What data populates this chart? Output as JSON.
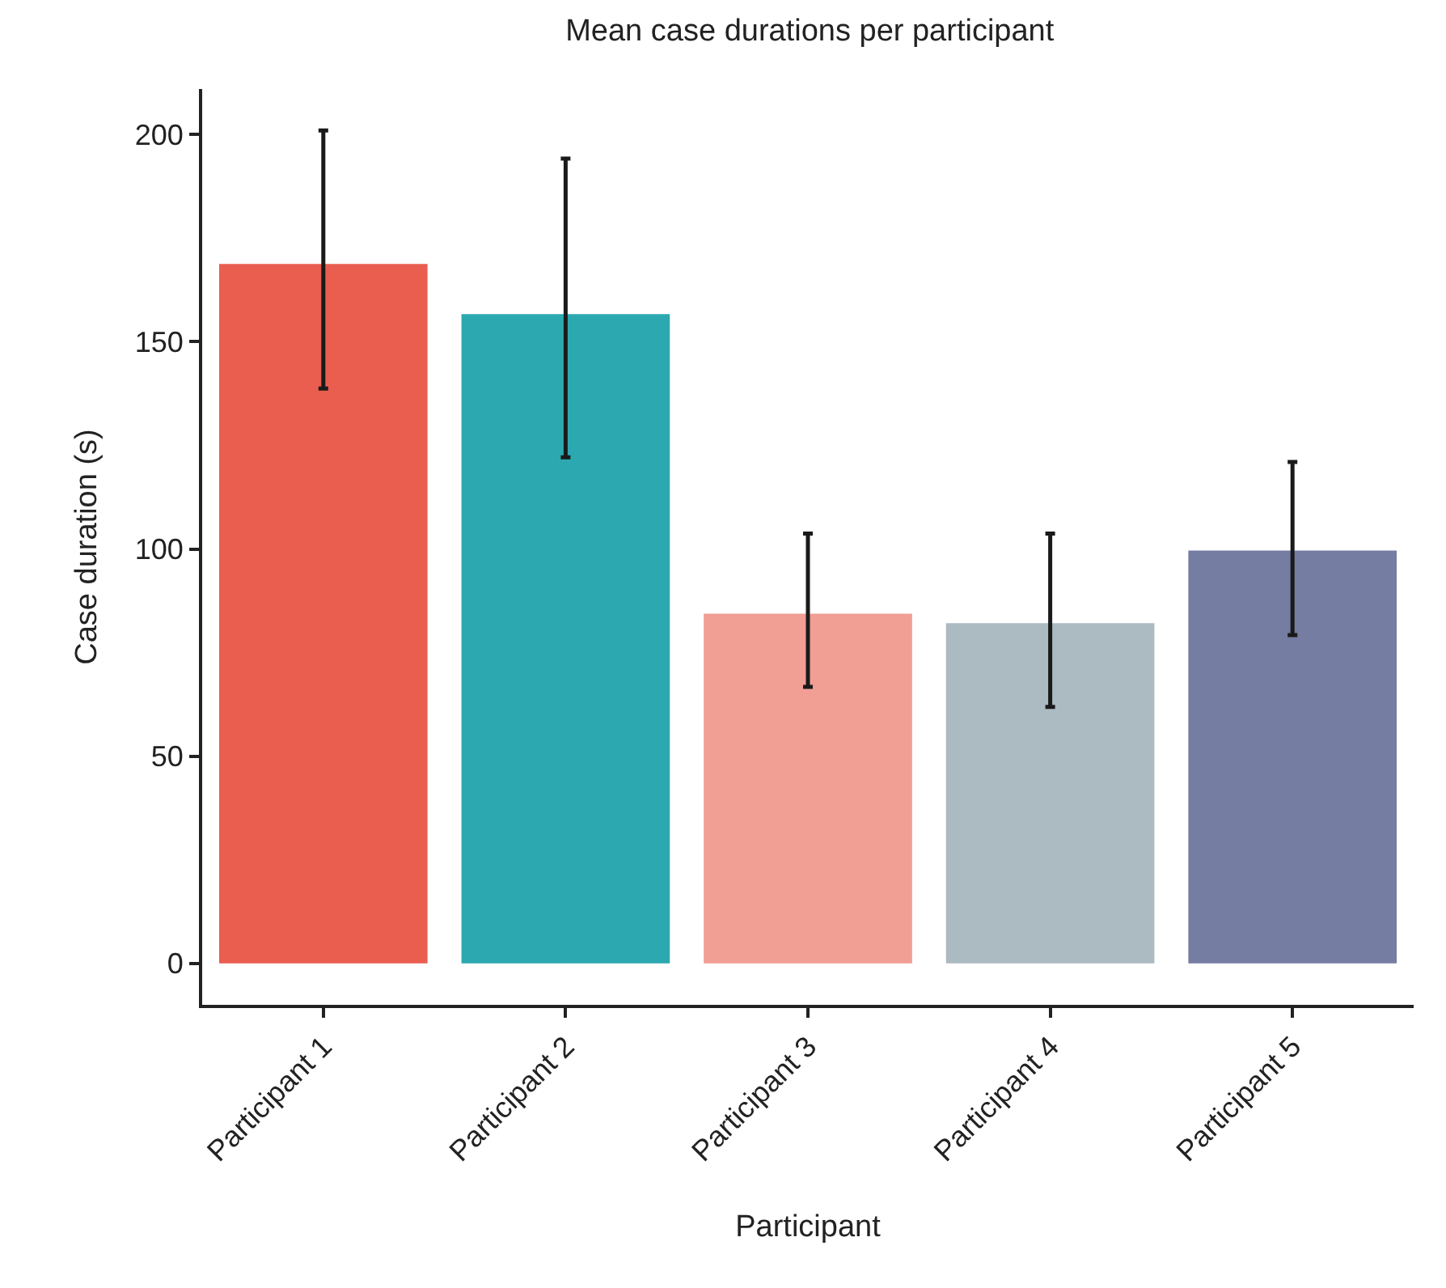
{
  "chart_data": {
    "type": "bar",
    "title": "Mean case durations per participant",
    "xlabel": "Participant",
    "ylabel": "Case duration (s)",
    "categories": [
      "Participant 1",
      "Participant 2",
      "Participant 3",
      "Participant 4",
      "Participant 5"
    ],
    "values": [
      168.8,
      156.7,
      84.4,
      82.1,
      99.6
    ],
    "colors": [
      "#e95e4f",
      "#2ca9b0",
      "#f19e94",
      "#acbac2",
      "#767da3"
    ],
    "errors": [
      [
        138.7,
        201
      ],
      [
        122.1,
        194.2
      ],
      [
        66.7,
        103.7
      ],
      [
        61.9,
        103.7
      ],
      [
        79.2,
        121
      ]
    ],
    "ylim": [
      -10,
      211
    ],
    "yticks": [
      0,
      50,
      100,
      150,
      200
    ],
    "grid": false
  }
}
